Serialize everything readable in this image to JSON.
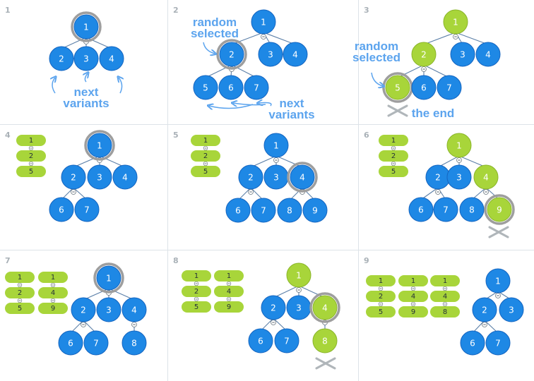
{
  "colors": {
    "blue": "#1e88e5",
    "blue_stroke": "#1565c0",
    "green": "#a8d53a",
    "green_stroke": "#8ab52a",
    "ring": "#9e9e9e",
    "edge": "#5b7fa8",
    "callout": "#5ca4ee",
    "pill": "#a8d53a",
    "grid": "#dde3e8",
    "cross": "#b0b6ba"
  },
  "panels": [
    {
      "number": "1",
      "nodes": [
        {
          "id": "n1",
          "label": "1",
          "color": "blue",
          "ring": true
        },
        {
          "id": "n2",
          "label": "2",
          "color": "blue"
        },
        {
          "id": "n3",
          "label": "3",
          "color": "blue"
        },
        {
          "id": "n4",
          "label": "4",
          "color": "blue"
        }
      ],
      "edges": [
        [
          "n1",
          "n2"
        ],
        [
          "n1",
          "n3"
        ],
        [
          "n1",
          "n4"
        ]
      ],
      "stacks": [],
      "callouts": [
        {
          "id": "next",
          "lines": [
            "next",
            "variants"
          ]
        }
      ],
      "crosses": 0
    },
    {
      "number": "2",
      "nodes": [
        {
          "id": "n1",
          "label": "1",
          "color": "blue"
        },
        {
          "id": "n2",
          "label": "2",
          "color": "blue",
          "ring": true
        },
        {
          "id": "n3",
          "label": "3",
          "color": "blue"
        },
        {
          "id": "n4",
          "label": "4",
          "color": "blue"
        },
        {
          "id": "n5",
          "label": "5",
          "color": "blue"
        },
        {
          "id": "n6",
          "label": "6",
          "color": "blue"
        },
        {
          "id": "n7",
          "label": "7",
          "color": "blue"
        }
      ],
      "edges": [
        [
          "n1",
          "n2"
        ],
        [
          "n1",
          "n3"
        ],
        [
          "n1",
          "n4"
        ],
        [
          "n2",
          "n5"
        ],
        [
          "n2",
          "n6"
        ],
        [
          "n2",
          "n7"
        ]
      ],
      "stacks": [],
      "callouts": [
        {
          "id": "random",
          "lines": [
            "random",
            "selected"
          ]
        },
        {
          "id": "next",
          "lines": [
            "next",
            "variants"
          ]
        }
      ],
      "crosses": 0
    },
    {
      "number": "3",
      "nodes": [
        {
          "id": "n1",
          "label": "1",
          "color": "green"
        },
        {
          "id": "n2",
          "label": "2",
          "color": "green"
        },
        {
          "id": "n3",
          "label": "3",
          "color": "blue"
        },
        {
          "id": "n4",
          "label": "4",
          "color": "blue"
        },
        {
          "id": "n5",
          "label": "5",
          "color": "green",
          "ring": true
        },
        {
          "id": "n6",
          "label": "6",
          "color": "blue"
        },
        {
          "id": "n7",
          "label": "7",
          "color": "blue"
        }
      ],
      "edges": [
        [
          "n1",
          "n2"
        ],
        [
          "n1",
          "n3"
        ],
        [
          "n1",
          "n4"
        ],
        [
          "n2",
          "n5"
        ],
        [
          "n2",
          "n6"
        ],
        [
          "n2",
          "n7"
        ]
      ],
      "stacks": [],
      "callouts": [
        {
          "id": "random",
          "lines": [
            "random",
            "selected"
          ]
        },
        {
          "id": "end",
          "lines": [
            "the end"
          ]
        }
      ],
      "crosses": 1
    },
    {
      "number": "4",
      "nodes": [
        {
          "id": "n1",
          "label": "1",
          "color": "blue",
          "ring": true
        },
        {
          "id": "n2",
          "label": "2",
          "color": "blue"
        },
        {
          "id": "n3",
          "label": "3",
          "color": "blue"
        },
        {
          "id": "n4",
          "label": "4",
          "color": "blue"
        },
        {
          "id": "n6",
          "label": "6",
          "color": "blue"
        },
        {
          "id": "n7",
          "label": "7",
          "color": "blue"
        }
      ],
      "edges": [
        [
          "n1",
          "n2"
        ],
        [
          "n1",
          "n3"
        ],
        [
          "n1",
          "n4"
        ],
        [
          "n2",
          "n6"
        ],
        [
          "n2",
          "n7"
        ]
      ],
      "stacks": [
        [
          "1",
          "2",
          "5"
        ]
      ],
      "callouts": [],
      "crosses": 0
    },
    {
      "number": "5",
      "nodes": [
        {
          "id": "n1",
          "label": "1",
          "color": "blue"
        },
        {
          "id": "n2",
          "label": "2",
          "color": "blue"
        },
        {
          "id": "n3",
          "label": "3",
          "color": "blue"
        },
        {
          "id": "n4",
          "label": "4",
          "color": "blue",
          "ring": true
        },
        {
          "id": "n6",
          "label": "6",
          "color": "blue"
        },
        {
          "id": "n7",
          "label": "7",
          "color": "blue"
        },
        {
          "id": "n8",
          "label": "8",
          "color": "blue"
        },
        {
          "id": "n9",
          "label": "9",
          "color": "blue"
        }
      ],
      "edges": [
        [
          "n1",
          "n2"
        ],
        [
          "n1",
          "n3"
        ],
        [
          "n1",
          "n4"
        ],
        [
          "n2",
          "n6"
        ],
        [
          "n2",
          "n7"
        ],
        [
          "n4",
          "n8"
        ],
        [
          "n4",
          "n9"
        ]
      ],
      "stacks": [
        [
          "1",
          "2",
          "5"
        ]
      ],
      "callouts": [],
      "crosses": 0
    },
    {
      "number": "6",
      "nodes": [
        {
          "id": "n1",
          "label": "1",
          "color": "green"
        },
        {
          "id": "n2",
          "label": "2",
          "color": "blue"
        },
        {
          "id": "n3",
          "label": "3",
          "color": "blue"
        },
        {
          "id": "n4",
          "label": "4",
          "color": "green"
        },
        {
          "id": "n6",
          "label": "6",
          "color": "blue"
        },
        {
          "id": "n7",
          "label": "7",
          "color": "blue"
        },
        {
          "id": "n8",
          "label": "8",
          "color": "blue"
        },
        {
          "id": "n9",
          "label": "9",
          "color": "green",
          "ring": true
        }
      ],
      "edges": [
        [
          "n1",
          "n2"
        ],
        [
          "n1",
          "n3"
        ],
        [
          "n1",
          "n4"
        ],
        [
          "n2",
          "n6"
        ],
        [
          "n2",
          "n7"
        ],
        [
          "n4",
          "n8"
        ],
        [
          "n4",
          "n9"
        ]
      ],
      "stacks": [
        [
          "1",
          "2",
          "5"
        ]
      ],
      "callouts": [],
      "crosses": 1
    },
    {
      "number": "7",
      "nodes": [
        {
          "id": "n1",
          "label": "1",
          "color": "blue",
          "ring": true
        },
        {
          "id": "n2",
          "label": "2",
          "color": "blue"
        },
        {
          "id": "n3",
          "label": "3",
          "color": "blue"
        },
        {
          "id": "n4",
          "label": "4",
          "color": "blue"
        },
        {
          "id": "n6",
          "label": "6",
          "color": "blue"
        },
        {
          "id": "n7",
          "label": "7",
          "color": "blue"
        },
        {
          "id": "n8",
          "label": "8",
          "color": "blue"
        }
      ],
      "edges": [
        [
          "n1",
          "n2"
        ],
        [
          "n1",
          "n3"
        ],
        [
          "n1",
          "n4"
        ],
        [
          "n2",
          "n6"
        ],
        [
          "n2",
          "n7"
        ],
        [
          "n4",
          "n8"
        ]
      ],
      "stacks": [
        [
          "1",
          "2",
          "5"
        ],
        [
          "1",
          "4",
          "9"
        ]
      ],
      "callouts": [],
      "crosses": 0
    },
    {
      "number": "8",
      "nodes": [
        {
          "id": "n1",
          "label": "1",
          "color": "green"
        },
        {
          "id": "n2",
          "label": "2",
          "color": "blue"
        },
        {
          "id": "n3",
          "label": "3",
          "color": "blue"
        },
        {
          "id": "n4",
          "label": "4",
          "color": "green",
          "ring": true
        },
        {
          "id": "n6",
          "label": "6",
          "color": "blue"
        },
        {
          "id": "n7",
          "label": "7",
          "color": "blue"
        },
        {
          "id": "n8",
          "label": "8",
          "color": "green"
        }
      ],
      "edges": [
        [
          "n1",
          "n2"
        ],
        [
          "n1",
          "n3"
        ],
        [
          "n1",
          "n4"
        ],
        [
          "n2",
          "n6"
        ],
        [
          "n2",
          "n7"
        ],
        [
          "n4",
          "n8"
        ]
      ],
      "stacks": [
        [
          "1",
          "2",
          "5"
        ],
        [
          "1",
          "4",
          "9"
        ]
      ],
      "callouts": [],
      "crosses": 1
    },
    {
      "number": "9",
      "nodes": [
        {
          "id": "n1",
          "label": "1",
          "color": "blue"
        },
        {
          "id": "n2",
          "label": "2",
          "color": "blue"
        },
        {
          "id": "n3",
          "label": "3",
          "color": "blue"
        },
        {
          "id": "n6",
          "label": "6",
          "color": "blue"
        },
        {
          "id": "n7",
          "label": "7",
          "color": "blue"
        }
      ],
      "edges": [
        [
          "n1",
          "n2"
        ],
        [
          "n1",
          "n3"
        ],
        [
          "n2",
          "n6"
        ],
        [
          "n2",
          "n7"
        ]
      ],
      "stacks": [
        [
          "1",
          "2",
          "5"
        ],
        [
          "1",
          "4",
          "9"
        ],
        [
          "1",
          "4",
          "8"
        ]
      ],
      "callouts": [],
      "crosses": 0
    }
  ]
}
